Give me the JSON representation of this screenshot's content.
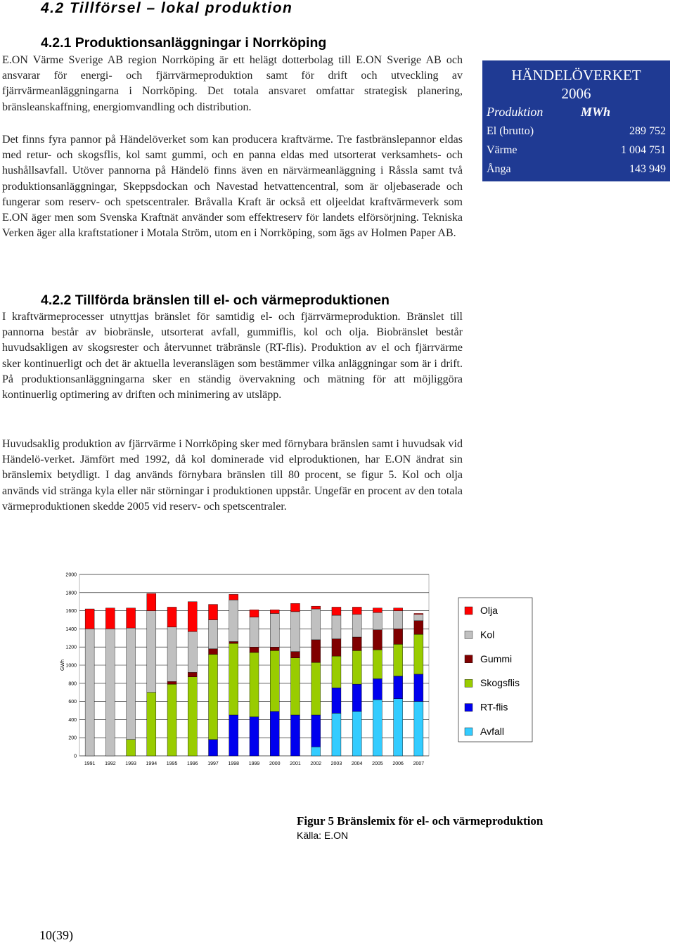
{
  "heading": "4.2 Tillförsel – lokal produktion",
  "section1": {
    "title": "4.2.1 Produktionsanläggningar i Norrköping",
    "paragraphs": [
      "E.ON Värme Sverige AB region Norrköping är ett helägt dotterbolag till E.ON Sverige AB och ansvarar för energi- och fjärrvärmeproduktion samt för drift och utveckling av fjärrvärmeanläggningarna i Norrköping. Det totala ansvaret omfattar strategisk planering, bränsleanskaffning, energiomvandling och distribution.",
      "Det finns fyra pannor på Händelöverket som kan producera kraftvärme. Tre fastbränslepannor eldas med retur- och skogsflis, kol samt gummi, och en panna eldas med utsorterat verksamhets- och hushållsavfall. Utöver pannorna på Händelö finns även en närvärmeanläggning i Råssla samt två produktionsanläggningar, Skeppsdockan och Navestad hetvattencentral, som är oljebaserade och fungerar som reserv- och spetscentraler. Bråvalla Kraft är också ett oljeeldat kraftvärmeverk som E.ON äger men som Svenska Kraftnät använder som effektreserv för landets elförsörjning. Tekniska Verken äger alla kraftstationer i Motala Ström, utom en i Norrköping, som ägs av Holmen Paper AB."
    ]
  },
  "table": {
    "title": "HÄNDELÖVERKET",
    "year": "2006",
    "header": [
      "Produktion",
      "MWh"
    ],
    "rows": [
      [
        "El (brutto)",
        "289 752"
      ],
      [
        "Värme",
        "1 004 751"
      ],
      [
        "Ånga",
        "143 949"
      ]
    ]
  },
  "section2": {
    "title": "4.2.2 Tillförda bränslen till el- och värmeproduktionen",
    "paragraphs": [
      "I kraftvärmeprocesser utnyttjas bränslet för samtidig el- och fjärrvärmeproduktion. Bränslet till pannorna består av biobränsle, utsorterat avfall, gummiflis, kol och olja. Biobränslet består huvudsakligen av skogsrester och återvunnet träbränsle (RT-flis). Produktion av el och fjärrvärme sker kontinuerligt och det är aktuella leveranslägen som bestämmer vilka anläggningar som är i drift. På produktionsanläggningarna sker en ständig övervakning och mätning för att möjliggöra kontinuerlig optimering av driften och minimering av utsläpp.",
      "Huvudsaklig produktion av fjärrvärme i Norrköping sker med förnybara bränslen samt i huvudsak vid Händelö-verket. Jämfört med 1992, då kol dominerade vid elproduktionen, har E.ON ändrat sin bränslemix betydligt. I dag används förnybara bränslen till 80 procent, se figur 5. Kol och olja används vid stränga kyla eller när störningar i produktionen uppstår. Ungefär en procent av den totala värmeproduktionen skedde 2005 vid reserv- och spetscentraler."
    ]
  },
  "chart_data": {
    "type": "stacked-bar",
    "y_label": "GWh",
    "categories": [
      "1991",
      "1992",
      "1993",
      "1994",
      "1995",
      "1996",
      "1997",
      "1998",
      "1999",
      "2000",
      "2001",
      "2002",
      "2003",
      "2004",
      "2005",
      "2006",
      "2007"
    ],
    "series": [
      {
        "name": "Avfall",
        "color": "#33ccff",
        "values": [
          0,
          0,
          0,
          0,
          0,
          0,
          0,
          0,
          0,
          0,
          0,
          100,
          470,
          490,
          620,
          630,
          600
        ]
      },
      {
        "name": "RT-flis",
        "color": "#0000ee",
        "values": [
          0,
          0,
          0,
          0,
          0,
          0,
          180,
          450,
          430,
          490,
          450,
          350,
          280,
          300,
          230,
          250,
          300
        ]
      },
      {
        "name": "Skogsflis",
        "color": "#99cc00",
        "values": [
          0,
          0,
          180,
          700,
          790,
          870,
          940,
          790,
          710,
          670,
          630,
          580,
          350,
          370,
          320,
          350,
          440
        ]
      },
      {
        "name": "Gummi",
        "color": "#800000",
        "values": [
          0,
          0,
          0,
          0,
          30,
          50,
          60,
          20,
          60,
          40,
          70,
          250,
          190,
          150,
          220,
          170,
          150
        ]
      },
      {
        "name": "Kol",
        "color": "#c0c0c0",
        "values": [
          1400,
          1400,
          1230,
          900,
          600,
          450,
          320,
          460,
          330,
          370,
          440,
          340,
          260,
          250,
          190,
          200,
          70
        ]
      },
      {
        "name": "Olja",
        "color": "#ff0000",
        "values": [
          220,
          230,
          220,
          190,
          220,
          330,
          170,
          60,
          80,
          40,
          90,
          30,
          90,
          80,
          50,
          30,
          10
        ]
      }
    ],
    "ylim": [
      0,
      2000
    ],
    "yticks": [
      0,
      200,
      400,
      600,
      800,
      1000,
      1200,
      1400,
      1600,
      1800,
      2000
    ],
    "legend": "right"
  },
  "caption": {
    "title": "Figur 5 Bränslemix för el- och värmeproduktion",
    "source": "Källa: E.ON"
  },
  "page_number": "10(39)"
}
